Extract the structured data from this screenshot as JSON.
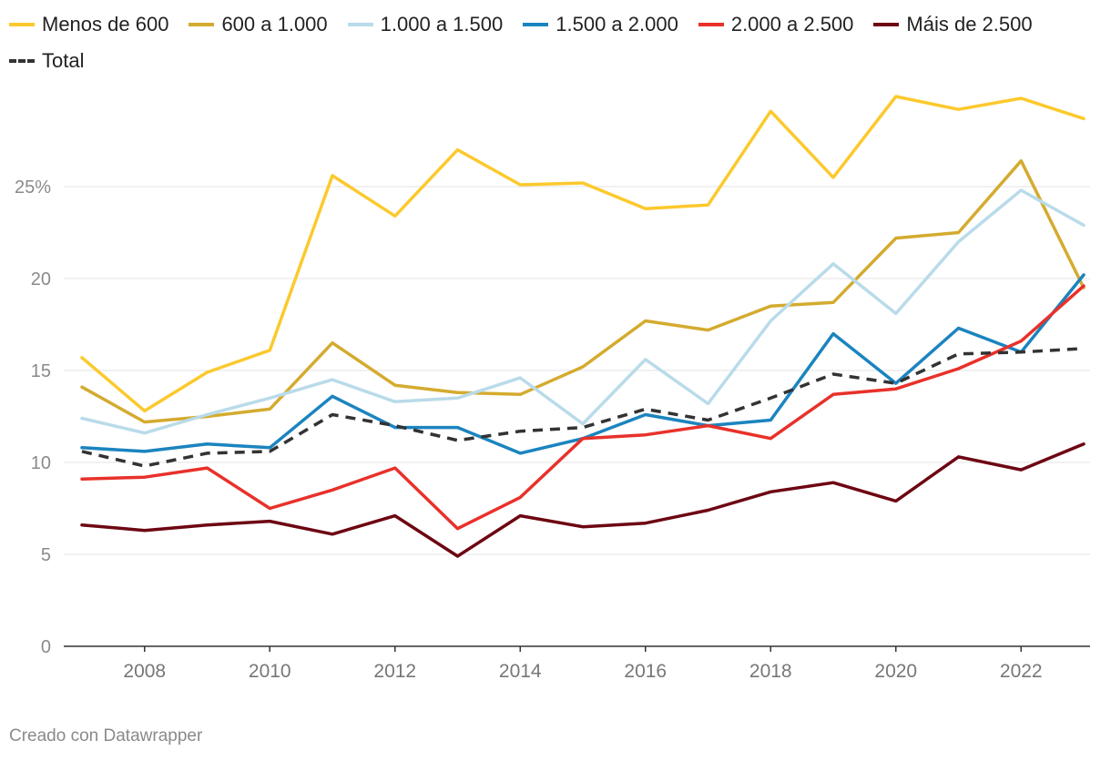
{
  "chart_data": {
    "type": "line",
    "title": "",
    "xlabel": "",
    "ylabel": "",
    "ylim": [
      0,
      30
    ],
    "y_ticks": [
      0,
      5,
      10,
      15,
      20,
      25
    ],
    "y_tick_labels": [
      "0",
      "5",
      "10",
      "15",
      "20",
      "25%"
    ],
    "x_ticks": [
      2008,
      2010,
      2012,
      2014,
      2016,
      2018,
      2020,
      2022
    ],
    "x_tick_labels": [
      "2008",
      "2010",
      "2012",
      "2014",
      "2016",
      "2018",
      "2020",
      "2022"
    ],
    "legend_position": "top",
    "x": [
      2007,
      2008,
      2009,
      2010,
      2011,
      2012,
      2013,
      2014,
      2015,
      2016,
      2017,
      2018,
      2019,
      2020,
      2021,
      2022,
      2023
    ],
    "series": [
      {
        "name": "Menos de 600",
        "color": "#fcc92d",
        "dashed": false,
        "values": [
          15.7,
          12.8,
          14.9,
          16.1,
          25.6,
          23.4,
          27.0,
          25.1,
          25.2,
          23.8,
          24.0,
          29.1,
          25.5,
          29.9,
          29.2,
          29.8,
          28.7
        ]
      },
      {
        "name": "600 a 1.000",
        "color": "#d4ab2f",
        "dashed": false,
        "values": [
          14.1,
          12.2,
          12.5,
          12.9,
          16.5,
          14.2,
          13.8,
          13.7,
          15.2,
          17.7,
          17.2,
          18.5,
          18.7,
          22.2,
          22.5,
          26.4,
          19.5
        ]
      },
      {
        "name": "1.000 a 1.500",
        "color": "#b9dbea",
        "dashed": false,
        "values": [
          12.4,
          11.6,
          12.6,
          13.5,
          14.5,
          13.3,
          13.5,
          14.6,
          12.1,
          15.6,
          13.2,
          17.7,
          20.8,
          18.1,
          22.0,
          24.8,
          22.9
        ]
      },
      {
        "name": "1.500 a 2.000",
        "color": "#1b84bf",
        "dashed": false,
        "values": [
          10.8,
          10.6,
          11.0,
          10.8,
          13.6,
          11.9,
          11.9,
          10.5,
          11.3,
          12.6,
          12.0,
          12.3,
          17.0,
          14.3,
          17.3,
          16.0,
          20.2
        ]
      },
      {
        "name": "2.000 a 2.500",
        "color": "#e8312a",
        "dashed": false,
        "values": [
          9.1,
          9.2,
          9.7,
          7.5,
          8.5,
          9.7,
          6.4,
          8.1,
          11.3,
          11.5,
          12.0,
          11.3,
          13.7,
          14.0,
          15.1,
          16.6,
          19.6
        ]
      },
      {
        "name": "Máis de 2.500",
        "color": "#6d0612",
        "dashed": false,
        "values": [
          6.6,
          6.3,
          6.6,
          6.8,
          6.1,
          7.1,
          4.9,
          7.1,
          6.5,
          6.7,
          7.4,
          8.4,
          8.9,
          7.9,
          10.3,
          9.6,
          11.0
        ]
      },
      {
        "name": "Total",
        "color": "#333333",
        "dashed": true,
        "values": [
          10.6,
          9.8,
          10.5,
          10.6,
          12.6,
          12.0,
          11.2,
          11.7,
          11.9,
          12.9,
          12.3,
          13.5,
          14.8,
          14.3,
          15.9,
          16.0,
          16.2
        ]
      }
    ]
  },
  "credit": "Creado con Datawrapper"
}
